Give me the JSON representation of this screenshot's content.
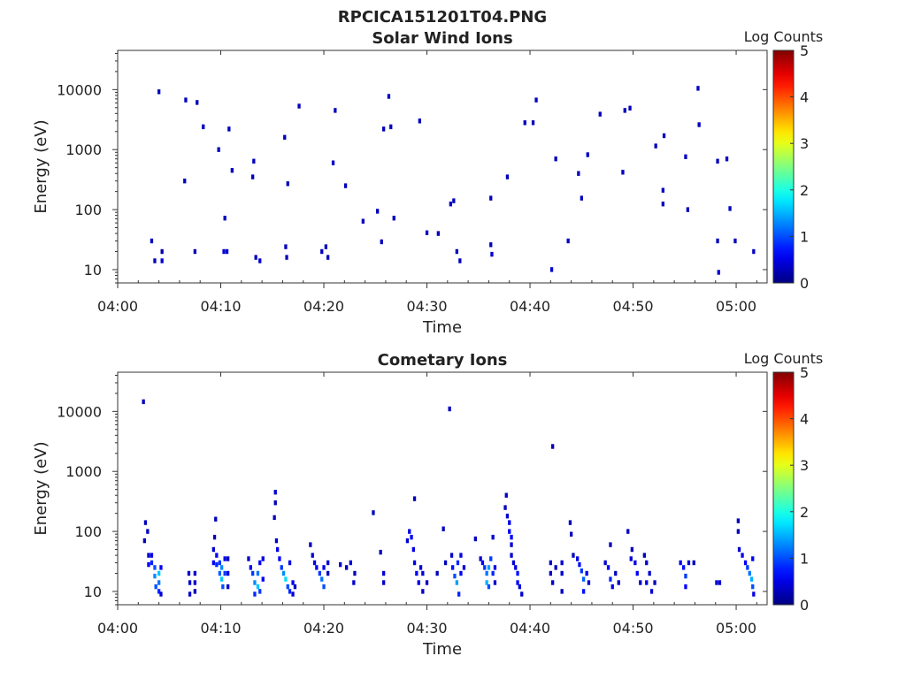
{
  "figure": {
    "file_title": "RPCICA151201T04.PNG"
  },
  "chart_data": [
    {
      "type": "heatmap",
      "title": "Solar Wind Ions",
      "xlabel": "Time",
      "ylabel": "Energy (eV)",
      "x_ticks": [
        "04:00",
        "04:10",
        "04:20",
        "04:30",
        "04:40",
        "04:50",
        "05:00"
      ],
      "x_range_minutes": [
        0,
        63
      ],
      "y_ticks": [
        "10",
        "100",
        "1000",
        "10000"
      ],
      "y_scale": "log",
      "y_range_eV": [
        6,
        45000
      ],
      "colorbar": {
        "label": "Log Counts",
        "ticks": [
          "0",
          "1",
          "2",
          "3",
          "4",
          "5"
        ],
        "range": [
          0,
          5
        ],
        "colormap": "jet"
      },
      "cells": [
        [
          3.3,
          30,
          0.3
        ],
        [
          3.6,
          14,
          0.3
        ],
        [
          4.0,
          9200,
          0.3
        ],
        [
          4.3,
          20,
          0.2
        ],
        [
          4.3,
          14,
          0.4
        ],
        [
          6.5,
          300,
          0.3
        ],
        [
          6.6,
          6700,
          0.3
        ],
        [
          7.5,
          20,
          0.3
        ],
        [
          7.7,
          6100,
          0.3
        ],
        [
          8.3,
          2400,
          0.3
        ],
        [
          9.8,
          1000,
          0.3
        ],
        [
          10.3,
          20,
          0.4
        ],
        [
          10.4,
          72,
          0.3
        ],
        [
          10.6,
          20,
          0.4
        ],
        [
          10.8,
          2200,
          0.3
        ],
        [
          11.1,
          450,
          0.3
        ],
        [
          13.1,
          350,
          0.3
        ],
        [
          13.2,
          640,
          0.3
        ],
        [
          13.4,
          16,
          0.3
        ],
        [
          13.8,
          14,
          0.4
        ],
        [
          16.2,
          1600,
          0.3
        ],
        [
          16.3,
          24,
          0.3
        ],
        [
          16.4,
          16,
          0.3
        ],
        [
          16.5,
          270,
          0.3
        ],
        [
          17.6,
          5300,
          0.3
        ],
        [
          19.8,
          20,
          0.3
        ],
        [
          20.2,
          24,
          0.3
        ],
        [
          20.4,
          16,
          0.3
        ],
        [
          20.9,
          600,
          0.3
        ],
        [
          21.1,
          4500,
          0.3
        ],
        [
          22.1,
          250,
          0.3
        ],
        [
          23.8,
          64,
          0.3
        ],
        [
          25.2,
          94,
          0.3
        ],
        [
          25.6,
          29,
          0.3
        ],
        [
          25.8,
          2200,
          0.3
        ],
        [
          26.3,
          7700,
          0.3
        ],
        [
          26.5,
          2400,
          0.3
        ],
        [
          26.8,
          72,
          0.3
        ],
        [
          29.3,
          3000,
          0.3
        ],
        [
          30.0,
          41,
          0.3
        ],
        [
          31.1,
          40,
          0.3
        ],
        [
          32.3,
          124,
          0.3
        ],
        [
          32.6,
          140,
          0.3
        ],
        [
          32.9,
          20,
          0.3
        ],
        [
          33.2,
          14,
          0.3
        ],
        [
          36.2,
          155,
          0.3
        ],
        [
          36.2,
          26,
          0.3
        ],
        [
          36.3,
          18,
          0.4
        ],
        [
          37.8,
          350,
          0.3
        ],
        [
          39.5,
          2800,
          0.3
        ],
        [
          40.3,
          2800,
          0.3
        ],
        [
          40.6,
          6700,
          0.3
        ],
        [
          42.1,
          10,
          0.4
        ],
        [
          42.5,
          700,
          0.3
        ],
        [
          43.7,
          30,
          0.3
        ],
        [
          44.7,
          400,
          0.3
        ],
        [
          45.0,
          155,
          0.3
        ],
        [
          45.6,
          820,
          0.3
        ],
        [
          46.8,
          3900,
          0.3
        ],
        [
          49.0,
          420,
          0.3
        ],
        [
          49.2,
          4500,
          0.3
        ],
        [
          49.7,
          4900,
          0.3
        ],
        [
          52.2,
          1150,
          0.3
        ],
        [
          52.9,
          210,
          0.3
        ],
        [
          52.9,
          124,
          0.3
        ],
        [
          53.0,
          1700,
          0.3
        ],
        [
          55.1,
          760,
          0.3
        ],
        [
          55.3,
          100,
          0.3
        ],
        [
          56.3,
          10500,
          0.3
        ],
        [
          56.4,
          2600,
          0.3
        ],
        [
          58.2,
          640,
          0.3
        ],
        [
          58.2,
          30,
          0.3
        ],
        [
          58.3,
          9,
          0.4
        ],
        [
          59.1,
          700,
          0.3
        ],
        [
          59.4,
          104,
          0.3
        ],
        [
          59.9,
          30,
          0.3
        ],
        [
          61.7,
          20,
          0.3
        ]
      ]
    },
    {
      "type": "heatmap",
      "title": "Cometary Ions",
      "xlabel": "Time",
      "ylabel": "Energy (eV)",
      "x_ticks": [
        "04:00",
        "04:10",
        "04:20",
        "04:30",
        "04:40",
        "04:50",
        "05:00"
      ],
      "x_range_minutes": [
        0,
        63
      ],
      "y_ticks": [
        "10",
        "100",
        "1000",
        "10000"
      ],
      "y_scale": "log",
      "y_range_eV": [
        6,
        45000
      ],
      "colorbar": {
        "label": "Log Counts",
        "ticks": [
          "0",
          "1",
          "2",
          "3",
          "4",
          "5"
        ],
        "range": [
          0,
          5
        ],
        "colormap": "jet"
      },
      "cells": [
        [
          2.5,
          14500,
          0.3
        ],
        [
          2.6,
          70,
          0.3
        ],
        [
          2.7,
          140,
          0.3
        ],
        [
          2.9,
          100,
          0.3
        ],
        [
          3.0,
          40,
          0.4
        ],
        [
          3.0,
          28,
          0.6
        ],
        [
          3.3,
          40,
          0.5
        ],
        [
          3.3,
          30,
          0.8
        ],
        [
          3.6,
          25,
          1.0
        ],
        [
          3.6,
          18,
          1.3
        ],
        [
          3.7,
          12,
          1.0
        ],
        [
          4.0,
          20,
          1.6
        ],
        [
          4.0,
          14,
          1.2
        ],
        [
          4.0,
          10,
          0.8
        ],
        [
          4.2,
          25,
          0.6
        ],
        [
          4.2,
          9,
          0.4
        ],
        [
          6.9,
          20,
          0.4
        ],
        [
          7.0,
          14,
          0.4
        ],
        [
          7.0,
          9,
          0.4
        ],
        [
          7.5,
          20,
          0.4
        ],
        [
          7.5,
          14,
          0.4
        ],
        [
          7.5,
          10,
          0.3
        ],
        [
          9.3,
          50,
          0.4
        ],
        [
          9.3,
          30,
          0.6
        ],
        [
          9.6,
          40,
          0.6
        ],
        [
          9.6,
          28,
          0.8
        ],
        [
          9.9,
          30,
          0.9
        ],
        [
          9.9,
          20,
          1.1
        ],
        [
          10.1,
          25,
          1.3
        ],
        [
          10.1,
          16,
          1.6
        ],
        [
          10.2,
          12,
          1.0
        ],
        [
          10.4,
          20,
          0.9
        ],
        [
          10.4,
          35,
          0.5
        ],
        [
          10.7,
          35,
          0.4
        ],
        [
          10.7,
          20,
          0.5
        ],
        [
          10.7,
          12,
          0.4
        ],
        [
          9.5,
          160,
          0.3
        ],
        [
          9.4,
          80,
          0.3
        ],
        [
          12.7,
          35,
          0.4
        ],
        [
          12.9,
          25,
          0.6
        ],
        [
          13.1,
          20,
          0.9
        ],
        [
          13.3,
          14,
          1.3
        ],
        [
          13.3,
          9,
          0.8
        ],
        [
          13.6,
          20,
          1.2
        ],
        [
          13.6,
          12,
          1.6
        ],
        [
          13.8,
          30,
          0.6
        ],
        [
          13.8,
          10,
          0.9
        ],
        [
          14.1,
          35,
          0.5
        ],
        [
          14.1,
          16,
          0.6
        ],
        [
          15.3,
          450,
          0.4
        ],
        [
          15.3,
          300,
          0.3
        ],
        [
          15.2,
          170,
          0.3
        ],
        [
          15.4,
          70,
          0.4
        ],
        [
          15.5,
          50,
          0.5
        ],
        [
          15.7,
          35,
          0.6
        ],
        [
          15.9,
          25,
          0.9
        ],
        [
          16.1,
          20,
          1.3
        ],
        [
          16.3,
          16,
          1.7
        ],
        [
          16.5,
          12,
          1.0
        ],
        [
          16.7,
          30,
          0.5
        ],
        [
          16.7,
          10,
          0.8
        ],
        [
          17.0,
          14,
          0.6
        ],
        [
          17.0,
          9,
          0.4
        ],
        [
          17.2,
          12,
          0.3
        ],
        [
          18.7,
          60,
          0.3
        ],
        [
          18.9,
          40,
          0.4
        ],
        [
          19.1,
          30,
          0.5
        ],
        [
          19.3,
          25,
          0.6
        ],
        [
          19.6,
          20,
          0.9
        ],
        [
          19.8,
          16,
          1.2
        ],
        [
          20.0,
          12,
          1.0
        ],
        [
          20.0,
          25,
          0.5
        ],
        [
          20.4,
          30,
          0.4
        ],
        [
          20.4,
          20,
          0.3
        ],
        [
          21.6,
          28,
          0.4
        ],
        [
          22.2,
          25,
          0.3
        ],
        [
          22.6,
          30,
          0.4
        ],
        [
          22.9,
          14,
          0.4
        ],
        [
          23.0,
          20,
          0.3
        ],
        [
          24.8,
          205,
          0.3
        ],
        [
          25.5,
          45,
          0.3
        ],
        [
          25.8,
          20,
          0.4
        ],
        [
          25.8,
          14,
          0.4
        ],
        [
          28.1,
          70,
          0.4
        ],
        [
          28.3,
          100,
          0.5
        ],
        [
          28.5,
          80,
          0.6
        ],
        [
          28.7,
          50,
          0.5
        ],
        [
          28.8,
          350,
          0.3
        ],
        [
          28.8,
          30,
          0.5
        ],
        [
          29.0,
          20,
          0.6
        ],
        [
          29.2,
          14,
          0.5
        ],
        [
          29.4,
          25,
          0.4
        ],
        [
          29.6,
          20,
          0.4
        ],
        [
          29.6,
          10,
          0.3
        ],
        [
          30.0,
          14,
          0.3
        ],
        [
          31.0,
          20,
          0.3
        ],
        [
          31.6,
          110,
          0.3
        ],
        [
          31.8,
          30,
          0.3
        ],
        [
          32.2,
          11000,
          0.3
        ],
        [
          32.4,
          40,
          0.4
        ],
        [
          32.5,
          25,
          0.7
        ],
        [
          32.7,
          18,
          1.0
        ],
        [
          32.9,
          14,
          1.4
        ],
        [
          33.0,
          30,
          0.8
        ],
        [
          33.1,
          9,
          0.8
        ],
        [
          33.3,
          40,
          0.5
        ],
        [
          33.3,
          20,
          0.6
        ],
        [
          33.6,
          25,
          0.4
        ],
        [
          34.7,
          75,
          0.3
        ],
        [
          35.2,
          35,
          0.4
        ],
        [
          35.4,
          30,
          0.6
        ],
        [
          35.6,
          25,
          0.9
        ],
        [
          35.8,
          20,
          1.2
        ],
        [
          35.8,
          14,
          1.5
        ],
        [
          36.0,
          25,
          1.4
        ],
        [
          36.0,
          12,
          1.0
        ],
        [
          36.2,
          35,
          0.9
        ],
        [
          36.4,
          20,
          0.8
        ],
        [
          36.4,
          80,
          0.4
        ],
        [
          36.6,
          25,
          0.5
        ],
        [
          36.6,
          14,
          0.4
        ],
        [
          37.7,
          400,
          0.3
        ],
        [
          37.6,
          250,
          0.3
        ],
        [
          37.8,
          180,
          0.4
        ],
        [
          38.0,
          140,
          0.5
        ],
        [
          38.0,
          100,
          0.6
        ],
        [
          38.2,
          80,
          0.6
        ],
        [
          38.2,
          60,
          0.4
        ],
        [
          38.2,
          40,
          0.4
        ],
        [
          38.4,
          30,
          0.4
        ],
        [
          38.6,
          25,
          0.5
        ],
        [
          38.8,
          20,
          0.7
        ],
        [
          38.8,
          14,
          0.6
        ],
        [
          39.0,
          12,
          0.5
        ],
        [
          39.2,
          9,
          0.4
        ],
        [
          42.0,
          30,
          0.4
        ],
        [
          42.0,
          20,
          0.3
        ],
        [
          42.2,
          2600,
          0.3
        ],
        [
          42.2,
          14,
          0.4
        ],
        [
          42.5,
          25,
          0.3
        ],
        [
          43.1,
          30,
          0.4
        ],
        [
          43.1,
          20,
          0.4
        ],
        [
          43.1,
          10,
          0.3
        ],
        [
          43.9,
          140,
          0.3
        ],
        [
          44.0,
          90,
          0.3
        ],
        [
          44.2,
          40,
          0.3
        ],
        [
          44.6,
          35,
          0.5
        ],
        [
          44.8,
          28,
          0.7
        ],
        [
          45.0,
          22,
          0.9
        ],
        [
          45.2,
          16,
          1.1
        ],
        [
          45.2,
          10,
          0.7
        ],
        [
          45.5,
          20,
          0.5
        ],
        [
          45.7,
          14,
          0.4
        ],
        [
          47.3,
          30,
          0.4
        ],
        [
          47.6,
          25,
          0.6
        ],
        [
          47.8,
          16,
          0.8
        ],
        [
          48.0,
          12,
          0.5
        ],
        [
          47.8,
          60,
          0.3
        ],
        [
          48.3,
          20,
          0.3
        ],
        [
          48.6,
          14,
          0.3
        ],
        [
          49.5,
          100,
          0.3
        ],
        [
          49.9,
          50,
          0.3
        ],
        [
          49.8,
          35,
          0.4
        ],
        [
          50.2,
          30,
          0.5
        ],
        [
          50.4,
          20,
          0.6
        ],
        [
          50.7,
          14,
          0.4
        ],
        [
          51.1,
          40,
          0.3
        ],
        [
          51.3,
          30,
          0.4
        ],
        [
          51.3,
          14,
          0.5
        ],
        [
          51.6,
          20,
          0.4
        ],
        [
          51.8,
          10,
          0.4
        ],
        [
          52.1,
          14,
          0.3
        ],
        [
          54.6,
          30,
          0.5
        ],
        [
          54.9,
          25,
          0.7
        ],
        [
          55.1,
          18,
          0.9
        ],
        [
          55.1,
          12,
          0.6
        ],
        [
          55.4,
          30,
          0.4
        ],
        [
          55.9,
          30,
          0.3
        ],
        [
          58.1,
          14,
          0.4
        ],
        [
          58.4,
          14,
          0.4
        ],
        [
          60.2,
          150,
          0.3
        ],
        [
          60.2,
          100,
          0.3
        ],
        [
          60.3,
          50,
          0.4
        ],
        [
          60.6,
          40,
          0.5
        ],
        [
          60.9,
          30,
          0.6
        ],
        [
          61.1,
          25,
          0.9
        ],
        [
          61.3,
          20,
          1.2
        ],
        [
          61.5,
          16,
          1.5
        ],
        [
          61.6,
          12,
          1.0
        ],
        [
          61.6,
          35,
          0.6
        ],
        [
          61.7,
          9,
          0.5
        ]
      ]
    }
  ]
}
